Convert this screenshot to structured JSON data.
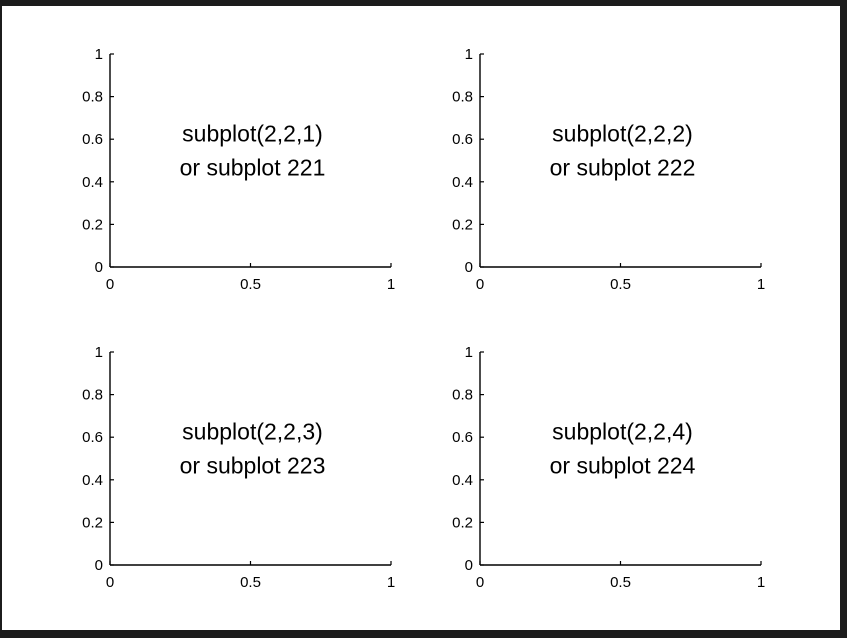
{
  "figure": {
    "background": "#ffffff",
    "frame_color": "#1c1c1c",
    "axis_color": "#000000"
  },
  "chart_data": [
    {
      "type": "scatter",
      "id": "subplot-221",
      "position": "top-left",
      "xlim": [
        0,
        1
      ],
      "ylim": [
        0,
        1
      ],
      "x_ticks": [
        0,
        0.5,
        1
      ],
      "y_ticks": [
        0,
        0.2,
        0.4,
        0.6,
        0.8,
        1
      ],
      "x_tick_labels": [
        "0",
        "0.5",
        "1"
      ],
      "y_tick_labels": [
        "0",
        "0.2",
        "0.4",
        "0.6",
        "0.8",
        "1"
      ],
      "grid": false,
      "series": [],
      "annotation": [
        "subplot(2,2,1)",
        "or subplot 221"
      ]
    },
    {
      "type": "scatter",
      "id": "subplot-222",
      "position": "top-right",
      "xlim": [
        0,
        1
      ],
      "ylim": [
        0,
        1
      ],
      "x_ticks": [
        0,
        0.5,
        1
      ],
      "y_ticks": [
        0,
        0.2,
        0.4,
        0.6,
        0.8,
        1
      ],
      "x_tick_labels": [
        "0",
        "0.5",
        "1"
      ],
      "y_tick_labels": [
        "0",
        "0.2",
        "0.4",
        "0.6",
        "0.8",
        "1"
      ],
      "grid": false,
      "series": [],
      "annotation": [
        "subplot(2,2,2)",
        "or subplot 222"
      ]
    },
    {
      "type": "scatter",
      "id": "subplot-223",
      "position": "bottom-left",
      "xlim": [
        0,
        1
      ],
      "ylim": [
        0,
        1
      ],
      "x_ticks": [
        0,
        0.5,
        1
      ],
      "y_ticks": [
        0,
        0.2,
        0.4,
        0.6,
        0.8,
        1
      ],
      "x_tick_labels": [
        "0",
        "0.5",
        "1"
      ],
      "y_tick_labels": [
        "0",
        "0.2",
        "0.4",
        "0.6",
        "0.8",
        "1"
      ],
      "grid": false,
      "series": [],
      "annotation": [
        "subplot(2,2,3)",
        "or subplot 223"
      ]
    },
    {
      "type": "scatter",
      "id": "subplot-224",
      "position": "bottom-right",
      "xlim": [
        0,
        1
      ],
      "ylim": [
        0,
        1
      ],
      "x_ticks": [
        0,
        0.5,
        1
      ],
      "y_ticks": [
        0,
        0.2,
        0.4,
        0.6,
        0.8,
        1
      ],
      "x_tick_labels": [
        "0",
        "0.5",
        "1"
      ],
      "y_tick_labels": [
        "0",
        "0.2",
        "0.4",
        "0.6",
        "0.8",
        "1"
      ],
      "grid": false,
      "series": [],
      "annotation": [
        "subplot(2,2,4)",
        "or subplot 224"
      ]
    }
  ]
}
